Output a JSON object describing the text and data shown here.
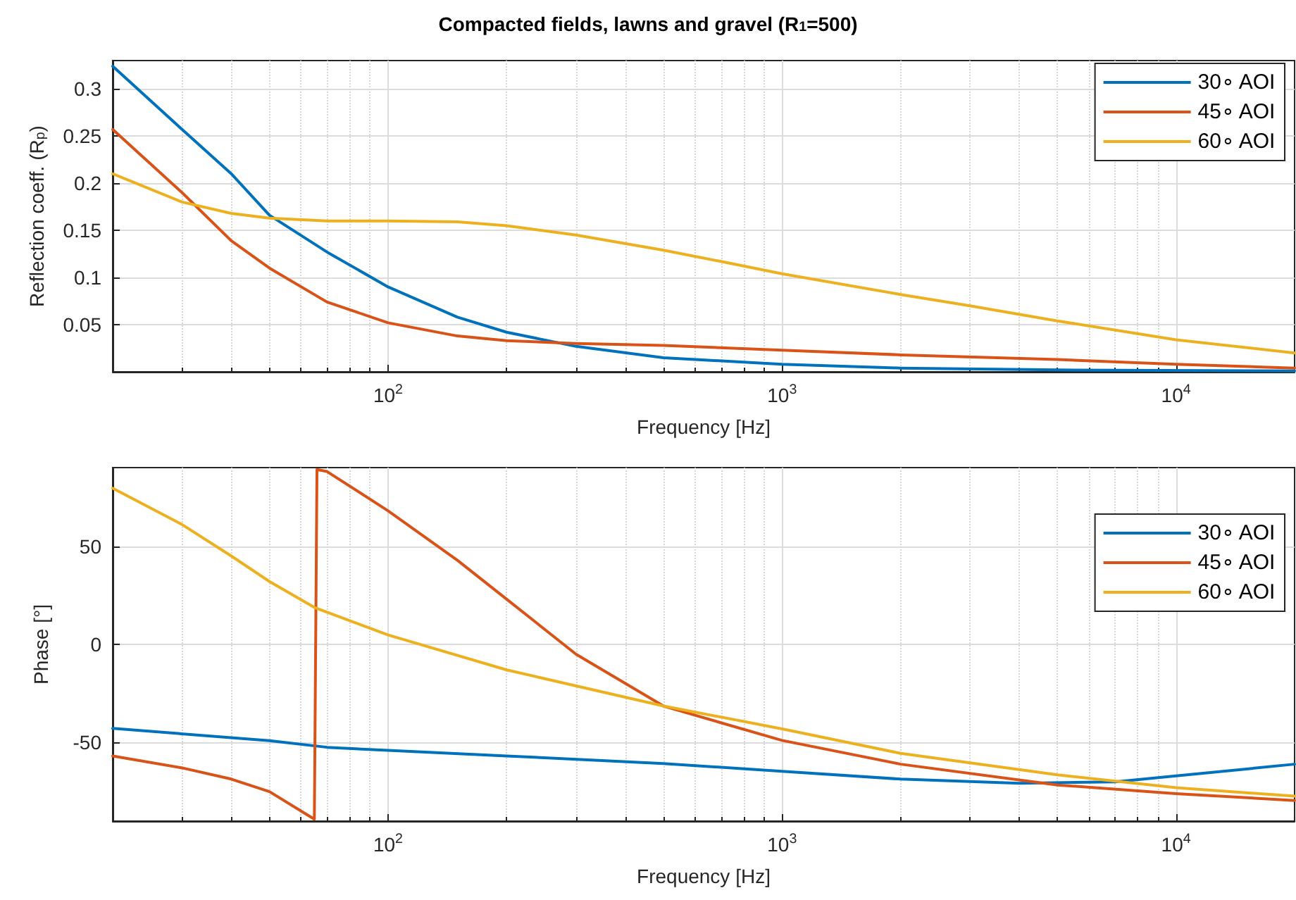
{
  "chart_data": [
    {
      "type": "line",
      "title": "Compacted fields, lawns and gravel (R$_{1}$=500)",
      "xlabel": "Frequency [Hz]",
      "ylabel": "Reflection coeff. (R$_{p}$)",
      "log": "x",
      "grid": true,
      "legend": "top right",
      "line_style": "solid",
      "marker": "none",
      "xlim": [
        20,
        20000
      ],
      "xticks": [
        {
          "value": 100,
          "label": "10$^{2}$"
        },
        {
          "value": 1000,
          "label": "10$^{3}$"
        },
        {
          "value": 10000,
          "label": "10$^{4}$"
        }
      ],
      "ylim": [
        0,
        0.33
      ],
      "yticks": [
        0.05,
        0.1,
        0.15,
        0.2,
        0.25,
        0.3
      ],
      "series": [
        {
          "name": "30∘ AOI",
          "color": "#0072bd",
          "x": [
            20,
            30,
            40,
            50,
            70,
            100,
            150,
            200,
            300,
            500,
            1000,
            2000,
            5000,
            20000
          ],
          "values": [
            0.324,
            0.257,
            0.21,
            0.166,
            0.127,
            0.09,
            0.058,
            0.042,
            0.027,
            0.015,
            0.008,
            0.004,
            0.002,
            0.001
          ]
        },
        {
          "name": "45∘ AOI",
          "color": "#d95319",
          "x": [
            20,
            30,
            40,
            50,
            70,
            100,
            150,
            200,
            300,
            500,
            1000,
            2000,
            5000,
            10000,
            20000
          ],
          "values": [
            0.257,
            0.19,
            0.139,
            0.11,
            0.074,
            0.052,
            0.038,
            0.033,
            0.03,
            0.028,
            0.023,
            0.018,
            0.013,
            0.008,
            0.004
          ]
        },
        {
          "name": "60∘ AOI",
          "color": "#edb120",
          "x": [
            20,
            30,
            40,
            50,
            70,
            100,
            150,
            200,
            300,
            500,
            700,
            1000,
            2000,
            3000,
            5000,
            10000,
            20000
          ],
          "values": [
            0.21,
            0.18,
            0.168,
            0.163,
            0.16,
            0.16,
            0.159,
            0.155,
            0.145,
            0.129,
            0.117,
            0.104,
            0.082,
            0.07,
            0.054,
            0.034,
            0.02
          ]
        }
      ]
    },
    {
      "type": "line",
      "xlabel": "Frequency [Hz]",
      "ylabel": "Phase [°]",
      "log": "x",
      "grid": true,
      "legend": "top right",
      "line_style": "solid",
      "marker": "none",
      "xlim": [
        20,
        20000
      ],
      "xticks": [
        {
          "value": 100,
          "label": "10$^{2}$"
        },
        {
          "value": 1000,
          "label": "10$^{3}$"
        },
        {
          "value": 10000,
          "label": "10$^{4}$"
        }
      ],
      "ylim": [
        -90,
        90
      ],
      "yticks": [
        -50,
        0,
        50
      ],
      "series": [
        {
          "name": "30∘ AOI",
          "color": "#0072bd",
          "x": [
            20,
            50,
            70,
            100,
            200,
            500,
            1000,
            2000,
            4000,
            7000,
            10000,
            20000
          ],
          "values": [
            -42.8,
            -49,
            -52.4,
            -54,
            -56.8,
            -60.7,
            -64.6,
            -68.6,
            -70.7,
            -70,
            -67,
            -61
          ]
        },
        {
          "name": "45∘ AOI",
          "color": "#d95319",
          "x": [
            20,
            30,
            40,
            50,
            65,
            66,
            70,
            100,
            150,
            200,
            300,
            500,
            1000,
            2000,
            5000,
            10000,
            20000
          ],
          "values": [
            -56.8,
            -62.9,
            -68.6,
            -75,
            -89,
            89,
            88,
            68,
            42.8,
            23,
            -5,
            -31.4,
            -48.9,
            -61,
            -71.6,
            -76,
            -79.5
          ]
        },
        {
          "name": "60∘ AOI",
          "color": "#edb120",
          "x": [
            20,
            30,
            40,
            50,
            65,
            100,
            200,
            500,
            1000,
            2000,
            5000,
            10000,
            20000
          ],
          "values": [
            79.5,
            61,
            45,
            32,
            18.8,
            4.8,
            -13,
            -31.4,
            -43,
            -55.5,
            -66.4,
            -73,
            -77.3
          ]
        }
      ]
    }
  ]
}
